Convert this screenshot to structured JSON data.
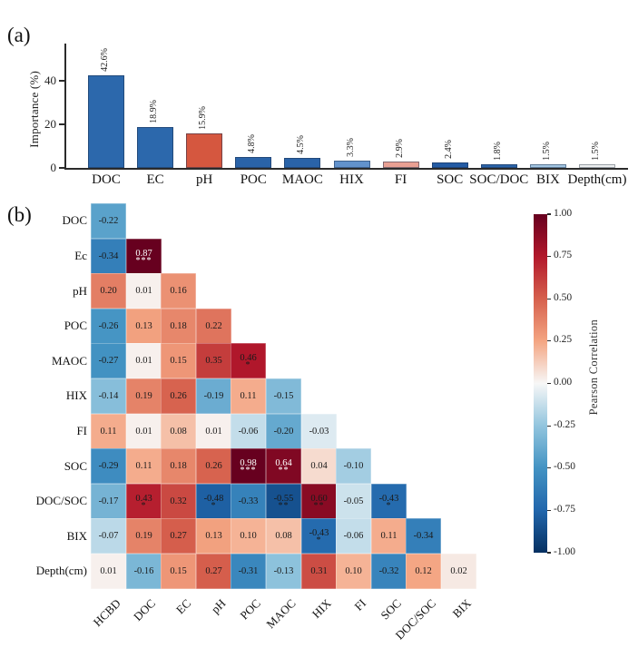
{
  "panels": {
    "a_label": "(a)",
    "b_label": "(b)"
  },
  "chart_data": [
    {
      "type": "bar",
      "panel": "a",
      "ylabel": "Importance (%)",
      "yticks": [
        "0",
        "20",
        "40"
      ],
      "ylim": [
        0,
        55
      ],
      "grid": false,
      "categories": [
        "DOC",
        "EC",
        "pH",
        "POC",
        "MAOC",
        "HIX",
        "FI",
        "SOC",
        "SOC/DOC",
        "BIX",
        "Depth(cm)"
      ],
      "values": [
        42.6,
        18.9,
        15.9,
        4.8,
        4.5,
        3.3,
        2.9,
        2.4,
        1.8,
        1.5,
        1.5
      ],
      "value_labels": [
        "42.6%",
        "18.9%",
        "15.9%",
        "4.8%",
        "4.5%",
        "3.3%",
        "2.9%",
        "2.4%",
        "1.8%",
        "1.5%",
        "1.5%"
      ],
      "bar_colors": [
        "#2c68ac",
        "#2c68ac",
        "#d5573f",
        "#2a63a8",
        "#2a63a8",
        "#6292cc",
        "#e9a093",
        "#235ba4",
        "#2a63a8",
        "#a3c6e2",
        "#edeff1"
      ]
    },
    {
      "type": "heatmap",
      "panel": "b",
      "shape": "lower-triangle",
      "x_labels": [
        "HCBD",
        "DOC",
        "EC",
        "pH",
        "POC",
        "MAOC",
        "HIX",
        "FI",
        "SOC",
        "DOC/SOC",
        "BIX"
      ],
      "y_labels": [
        "DOC",
        "Ec",
        "pH",
        "POC",
        "MAOC",
        "HIX",
        "FI",
        "SOC",
        "DOC/SOC",
        "BIX",
        "Depth(cm)"
      ],
      "rows": [
        {
          "label": "DOC",
          "values": [
            -0.22
          ],
          "sig": [
            ""
          ]
        },
        {
          "label": "Ec",
          "values": [
            -0.34,
            0.87
          ],
          "sig": [
            "",
            "***"
          ]
        },
        {
          "label": "pH",
          "values": [
            0.2,
            0.01,
            0.16
          ],
          "sig": [
            "",
            "",
            ""
          ]
        },
        {
          "label": "POC",
          "values": [
            -0.26,
            0.13,
            0.18,
            0.22
          ],
          "sig": [
            "",
            "",
            "",
            ""
          ]
        },
        {
          "label": "MAOC",
          "values": [
            -0.27,
            0.01,
            0.15,
            0.35,
            0.46
          ],
          "sig": [
            "",
            "",
            "",
            "",
            "*"
          ]
        },
        {
          "label": "HIX",
          "values": [
            -0.14,
            0.19,
            0.26,
            -0.19,
            0.11,
            -0.15
          ],
          "sig": [
            "",
            "",
            "",
            "",
            "",
            ""
          ]
        },
        {
          "label": "FI",
          "values": [
            0.11,
            0.01,
            0.08,
            0.01,
            -0.06,
            -0.2,
            -0.03
          ],
          "sig": [
            "",
            "",
            "",
            "",
            "",
            "",
            ""
          ]
        },
        {
          "label": "SOC",
          "values": [
            -0.29,
            0.11,
            0.18,
            0.26,
            0.98,
            0.64,
            0.04,
            -0.1
          ],
          "sig": [
            "",
            "",
            "",
            "",
            "***",
            "**",
            "",
            ""
          ]
        },
        {
          "label": "DOC/SOC",
          "values": [
            -0.17,
            0.43,
            0.32,
            -0.48,
            -0.33,
            -0.55,
            0.6,
            -0.05,
            -0.43
          ],
          "sig": [
            "",
            "*",
            "",
            "*",
            "",
            "**",
            "**",
            "",
            "*"
          ]
        },
        {
          "label": "BIX",
          "values": [
            -0.07,
            0.19,
            0.27,
            0.13,
            0.1,
            0.08,
            -0.43,
            -0.06,
            0.11,
            -0.34
          ],
          "sig": [
            "",
            "",
            "",
            "",
            "",
            "",
            "*",
            "",
            "",
            ""
          ]
        },
        {
          "label": "Depth(cm)",
          "values": [
            0.01,
            -0.16,
            0.15,
            0.27,
            -0.31,
            -0.13,
            0.31,
            0.1,
            -0.32,
            0.12,
            0.02
          ],
          "sig": [
            "",
            "",
            "",
            "",
            "",
            "",
            "",
            "",
            "",
            "",
            ""
          ]
        }
      ],
      "colorbar": {
        "label": "Pearson Correlation",
        "vmin": -1,
        "vmax": 1,
        "ticks": [
          "1.00",
          "0.75",
          "0.50",
          "0.25",
          "0.00",
          "-0.25",
          "-0.50",
          "-0.75",
          "-1.00"
        ],
        "colormap": "RdBu",
        "color_max": "#67001f",
        "color_mid": "#f7f7f7",
        "color_min": "#053061"
      }
    }
  ]
}
